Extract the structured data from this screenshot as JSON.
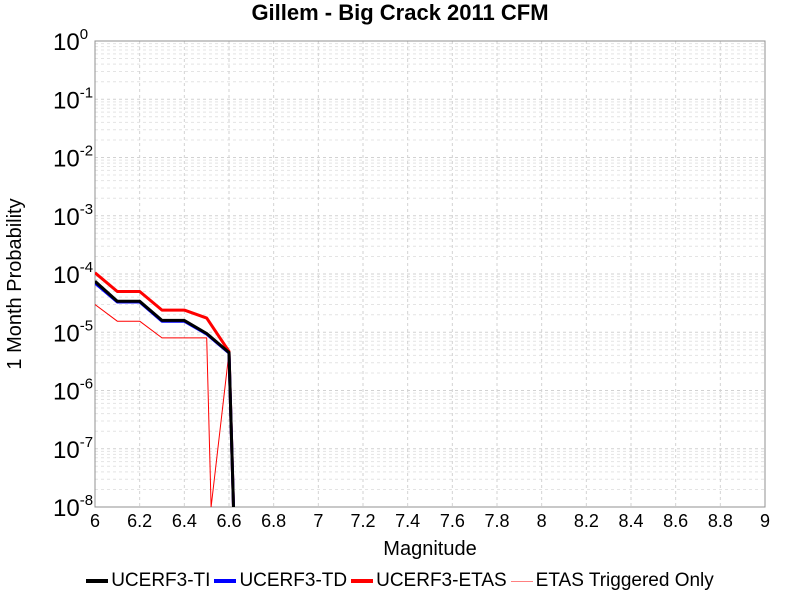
{
  "chart_data": {
    "type": "line",
    "title": "Gillem - Big Crack 2011 CFM",
    "xlabel": "Magnitude",
    "ylabel": "1 Month Probability",
    "xlim": [
      6,
      9
    ],
    "ylim": [
      1e-08,
      1
    ],
    "yscale": "log",
    "grid": true,
    "legend_position": "bottom",
    "x_ticks": [
      "6",
      "6.2",
      "6.4",
      "6.6",
      "6.8",
      "7",
      "7.2",
      "7.4",
      "7.6",
      "7.8",
      "8",
      "8.2",
      "8.4",
      "8.6",
      "8.8",
      "9"
    ],
    "y_ticks": [
      {
        "base": "10",
        "exp": "0"
      },
      {
        "base": "10",
        "exp": "-1"
      },
      {
        "base": "10",
        "exp": "-2"
      },
      {
        "base": "10",
        "exp": "-3"
      },
      {
        "base": "10",
        "exp": "-4"
      },
      {
        "base": "10",
        "exp": "-5"
      },
      {
        "base": "10",
        "exp": "-6"
      },
      {
        "base": "10",
        "exp": "-7"
      },
      {
        "base": "10",
        "exp": "-8"
      }
    ],
    "series": [
      {
        "name": "UCERF3-TI",
        "color": "#000000",
        "legend_color": "#000000",
        "width": 3,
        "x": [
          6.0,
          6.1,
          6.2,
          6.3,
          6.4,
          6.5,
          6.6,
          6.62
        ],
        "y": [
          7.5e-05,
          3.4e-05,
          3.4e-05,
          1.6e-05,
          1.6e-05,
          9.5e-06,
          4.5e-06,
          1e-08
        ]
      },
      {
        "name": "UCERF3-TD",
        "color": "#0000ff",
        "legend_color": "#0000ff",
        "width": 3,
        "x": [
          6.0,
          6.1,
          6.2,
          6.3,
          6.4,
          6.5,
          6.6,
          6.62
        ],
        "y": [
          7e-05,
          3.3e-05,
          3.3e-05,
          1.55e-05,
          1.55e-05,
          9.3e-06,
          4.4e-06,
          1e-08
        ]
      },
      {
        "name": "UCERF3-ETAS",
        "color": "#ff0000",
        "legend_color": "#ff0000",
        "width": 3,
        "x": [
          6.0,
          6.1,
          6.2,
          6.3,
          6.4,
          6.5,
          6.6,
          6.62
        ],
        "y": [
          0.000105,
          5e-05,
          5e-05,
          2.4e-05,
          2.4e-05,
          1.75e-05,
          4.7e-06,
          1e-08
        ]
      },
      {
        "name": "ETAS Triggered Only",
        "color": "#ff0000",
        "legend_color": "#ff8080",
        "width": 1,
        "x": [
          6.0,
          6.1,
          6.2,
          6.3,
          6.4,
          6.5,
          6.52,
          6.6,
          6.62
        ],
        "y": [
          3e-05,
          1.55e-05,
          1.55e-05,
          8e-06,
          8e-06,
          8e-06,
          1e-08,
          4.5e-06,
          1e-08
        ]
      }
    ]
  }
}
